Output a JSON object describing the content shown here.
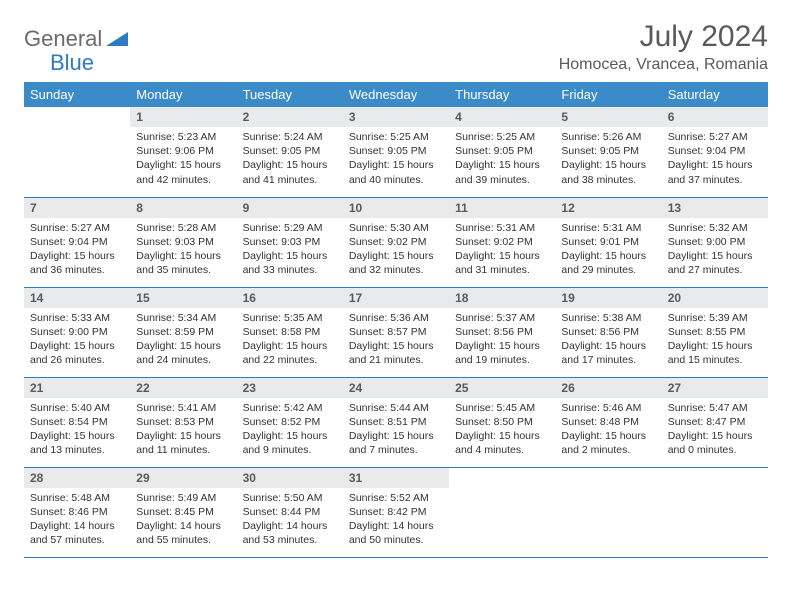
{
  "logo": {
    "general": "General",
    "blue": "Blue"
  },
  "title": "July 2024",
  "location": "Homocea, Vrancea, Romania",
  "colors": {
    "header_bg": "#3b8bc8",
    "header_text": "#ffffff",
    "border": "#2d7bc0",
    "daynum_bg": "#e9eaeb",
    "title_color": "#5a5a5a"
  },
  "daysOfWeek": [
    "Sunday",
    "Monday",
    "Tuesday",
    "Wednesday",
    "Thursday",
    "Friday",
    "Saturday"
  ],
  "weeks": [
    [
      {
        "empty": true
      },
      {
        "n": "1",
        "sunrise": "5:23 AM",
        "sunset": "9:06 PM",
        "daylight": "15 hours and 42 minutes."
      },
      {
        "n": "2",
        "sunrise": "5:24 AM",
        "sunset": "9:05 PM",
        "daylight": "15 hours and 41 minutes."
      },
      {
        "n": "3",
        "sunrise": "5:25 AM",
        "sunset": "9:05 PM",
        "daylight": "15 hours and 40 minutes."
      },
      {
        "n": "4",
        "sunrise": "5:25 AM",
        "sunset": "9:05 PM",
        "daylight": "15 hours and 39 minutes."
      },
      {
        "n": "5",
        "sunrise": "5:26 AM",
        "sunset": "9:05 PM",
        "daylight": "15 hours and 38 minutes."
      },
      {
        "n": "6",
        "sunrise": "5:27 AM",
        "sunset": "9:04 PM",
        "daylight": "15 hours and 37 minutes."
      }
    ],
    [
      {
        "n": "7",
        "sunrise": "5:27 AM",
        "sunset": "9:04 PM",
        "daylight": "15 hours and 36 minutes."
      },
      {
        "n": "8",
        "sunrise": "5:28 AM",
        "sunset": "9:03 PM",
        "daylight": "15 hours and 35 minutes."
      },
      {
        "n": "9",
        "sunrise": "5:29 AM",
        "sunset": "9:03 PM",
        "daylight": "15 hours and 33 minutes."
      },
      {
        "n": "10",
        "sunrise": "5:30 AM",
        "sunset": "9:02 PM",
        "daylight": "15 hours and 32 minutes."
      },
      {
        "n": "11",
        "sunrise": "5:31 AM",
        "sunset": "9:02 PM",
        "daylight": "15 hours and 31 minutes."
      },
      {
        "n": "12",
        "sunrise": "5:31 AM",
        "sunset": "9:01 PM",
        "daylight": "15 hours and 29 minutes."
      },
      {
        "n": "13",
        "sunrise": "5:32 AM",
        "sunset": "9:00 PM",
        "daylight": "15 hours and 27 minutes."
      }
    ],
    [
      {
        "n": "14",
        "sunrise": "5:33 AM",
        "sunset": "9:00 PM",
        "daylight": "15 hours and 26 minutes."
      },
      {
        "n": "15",
        "sunrise": "5:34 AM",
        "sunset": "8:59 PM",
        "daylight": "15 hours and 24 minutes."
      },
      {
        "n": "16",
        "sunrise": "5:35 AM",
        "sunset": "8:58 PM",
        "daylight": "15 hours and 22 minutes."
      },
      {
        "n": "17",
        "sunrise": "5:36 AM",
        "sunset": "8:57 PM",
        "daylight": "15 hours and 21 minutes."
      },
      {
        "n": "18",
        "sunrise": "5:37 AM",
        "sunset": "8:56 PM",
        "daylight": "15 hours and 19 minutes."
      },
      {
        "n": "19",
        "sunrise": "5:38 AM",
        "sunset": "8:56 PM",
        "daylight": "15 hours and 17 minutes."
      },
      {
        "n": "20",
        "sunrise": "5:39 AM",
        "sunset": "8:55 PM",
        "daylight": "15 hours and 15 minutes."
      }
    ],
    [
      {
        "n": "21",
        "sunrise": "5:40 AM",
        "sunset": "8:54 PM",
        "daylight": "15 hours and 13 minutes."
      },
      {
        "n": "22",
        "sunrise": "5:41 AM",
        "sunset": "8:53 PM",
        "daylight": "15 hours and 11 minutes."
      },
      {
        "n": "23",
        "sunrise": "5:42 AM",
        "sunset": "8:52 PM",
        "daylight": "15 hours and 9 minutes."
      },
      {
        "n": "24",
        "sunrise": "5:44 AM",
        "sunset": "8:51 PM",
        "daylight": "15 hours and 7 minutes."
      },
      {
        "n": "25",
        "sunrise": "5:45 AM",
        "sunset": "8:50 PM",
        "daylight": "15 hours and 4 minutes."
      },
      {
        "n": "26",
        "sunrise": "5:46 AM",
        "sunset": "8:48 PM",
        "daylight": "15 hours and 2 minutes."
      },
      {
        "n": "27",
        "sunrise": "5:47 AM",
        "sunset": "8:47 PM",
        "daylight": "15 hours and 0 minutes."
      }
    ],
    [
      {
        "n": "28",
        "sunrise": "5:48 AM",
        "sunset": "8:46 PM",
        "daylight": "14 hours and 57 minutes."
      },
      {
        "n": "29",
        "sunrise": "5:49 AM",
        "sunset": "8:45 PM",
        "daylight": "14 hours and 55 minutes."
      },
      {
        "n": "30",
        "sunrise": "5:50 AM",
        "sunset": "8:44 PM",
        "daylight": "14 hours and 53 minutes."
      },
      {
        "n": "31",
        "sunrise": "5:52 AM",
        "sunset": "8:42 PM",
        "daylight": "14 hours and 50 minutes."
      },
      {
        "empty": true
      },
      {
        "empty": true
      },
      {
        "empty": true
      }
    ]
  ],
  "labels": {
    "sunrise": "Sunrise:",
    "sunset": "Sunset:",
    "daylight": "Daylight:"
  }
}
